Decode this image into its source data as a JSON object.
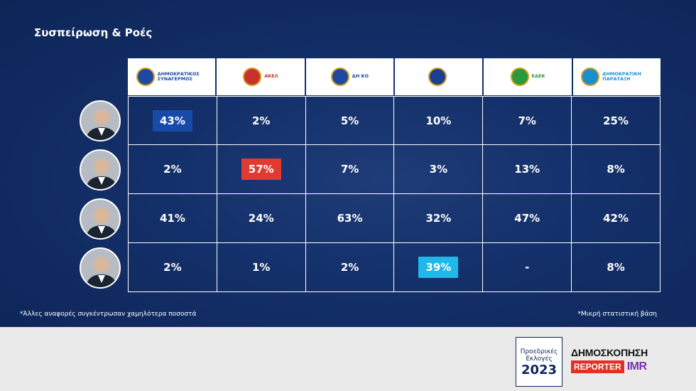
{
  "title": "Συσπείρωση & Ροές",
  "parties": [
    {
      "name": "ΔΗΜΟΚΡΑΤΙΚΟΣ ΣΥΝΑΓΕΡΜΟΣ",
      "label": "ΔΗΜΟΚΡΑΤΙΚΟΣ ΣΥΝΑΓΕΡΜΟΣ",
      "star": "",
      "color": "#1d4aa0",
      "icon": "disy-logo-icon"
    },
    {
      "name": "ΑΚΕΛ",
      "label": "ΑΚΕΛ",
      "star": "",
      "color": "#c8322a",
      "icon": "akel-logo-icon"
    },
    {
      "name": "ΔΗΚΟ",
      "label": "ΔΗ ΚΟ",
      "star": "",
      "color": "#1d4aa0",
      "icon": "diko-logo-icon"
    },
    {
      "name": "ΕΛΑΜ",
      "label": "",
      "star": "*",
      "color": "#1d3f8f",
      "icon": "elam-logo-icon"
    },
    {
      "name": "ΕΔΕΚ",
      "label": "ΕΔΕΚ",
      "star": "*",
      "color": "#2a9a3a",
      "icon": "edek-logo-icon"
    },
    {
      "name": "ΔΗΜΟΚΡΑΤΙΚΗ ΠΑΡΑΤΑΞΗ",
      "label": "ΔΗΜΟΚΡΑΤΙΚΗ ΠΑΡΑΤΑΞΗ",
      "star": "*",
      "color": "#1a8fd0",
      "icon": "dipa-logo-icon"
    }
  ],
  "chart_data": {
    "type": "table",
    "title": "Συσπείρωση & Ροές",
    "columns": [
      "ΔΗΣΥ",
      "ΑΚΕΛ",
      "ΔΗΚΟ",
      "ΕΛΑΜ",
      "ΕΔΕΚ",
      "ΔΗΠΑ"
    ],
    "rows": [
      {
        "values": [
          "43%",
          "2%",
          "5%",
          "10%",
          "7%",
          "25%"
        ],
        "highlight": 0,
        "highlight_color": "#1a4aa8"
      },
      {
        "values": [
          "2%",
          "57%",
          "7%",
          "3%",
          "13%",
          "8%"
        ],
        "highlight": 1,
        "highlight_color": "#e13a30"
      },
      {
        "values": [
          "41%",
          "24%",
          "63%",
          "32%",
          "47%",
          "42%"
        ],
        "highlight": -1,
        "highlight_color": ""
      },
      {
        "values": [
          "2%",
          "1%",
          "2%",
          "39%",
          "-",
          "8%"
        ],
        "highlight": 3,
        "highlight_color": "#1fb8e8"
      }
    ]
  },
  "footnotes": {
    "left": "*Άλλες αναφορές συγκέντρωσαν χαμηλότερα ποσοστά",
    "right": "*Μικρή στατιστική βάση"
  },
  "footer": {
    "election_line1": "Προεδρικές",
    "election_line2": "Εκλογές",
    "election_year": "2023",
    "poll_heading": "ΔΗΜΟΣΚΟΠΗΣΗ",
    "brand_reporter": "REPORTER",
    "brand_imr": "IMR"
  }
}
